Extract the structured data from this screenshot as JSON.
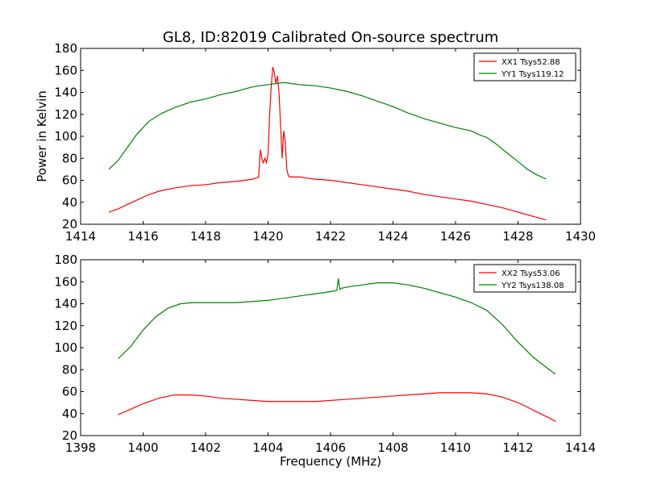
{
  "figure": {
    "title": "GL8, ID:82019 Calibrated On-source spectrum",
    "ylabel": "Power in Kelvin",
    "xlabel": "Frequency (MHz)"
  },
  "chart_data": [
    {
      "type": "line",
      "title": "GL8, ID:82019 Calibrated On-source spectrum",
      "xlabel": "",
      "ylabel": "Power in Kelvin",
      "xlim": [
        1414,
        1430
      ],
      "ylim": [
        20,
        180
      ],
      "xticks": [
        1414,
        1416,
        1418,
        1420,
        1422,
        1424,
        1426,
        1428,
        1430
      ],
      "yticks": [
        20,
        40,
        60,
        80,
        100,
        120,
        140,
        160,
        180
      ],
      "legend": "top-right",
      "grid": false,
      "series": [
        {
          "name": "XX1 Tsys52.88",
          "color": "#ff0000",
          "x": [
            1414.9,
            1415.2,
            1415.5,
            1415.8,
            1416.1,
            1416.5,
            1417.0,
            1417.5,
            1418.0,
            1418.5,
            1419.0,
            1419.5,
            1419.7,
            1419.75,
            1419.8,
            1419.85,
            1419.9,
            1419.95,
            1420.0,
            1420.05,
            1420.1,
            1420.15,
            1420.2,
            1420.25,
            1420.3,
            1420.35,
            1420.4,
            1420.45,
            1420.5,
            1420.55,
            1420.6,
            1420.65,
            1420.7,
            1421.0,
            1421.5,
            1422.0,
            1422.5,
            1423.0,
            1423.5,
            1424.0,
            1424.5,
            1425.0,
            1425.5,
            1426.0,
            1426.5,
            1427.0,
            1427.5,
            1428.0,
            1428.5,
            1428.9
          ],
          "y": [
            31,
            34,
            38,
            42,
            46,
            50,
            53,
            55,
            56,
            58,
            59,
            61,
            63,
            88,
            80,
            76,
            80,
            76,
            84,
            120,
            145,
            163,
            158,
            148,
            155,
            140,
            110,
            80,
            105,
            95,
            70,
            64,
            63,
            63,
            61,
            60,
            58,
            56,
            54,
            52,
            50,
            47,
            45,
            43,
            41,
            38,
            35,
            31,
            27,
            24
          ]
        },
        {
          "name": "YY1 Tsys119.12",
          "color": "#008000",
          "x": [
            1414.9,
            1415.2,
            1415.5,
            1415.8,
            1416.2,
            1416.6,
            1417.0,
            1417.5,
            1418.0,
            1418.5,
            1419.0,
            1419.5,
            1420.0,
            1420.5,
            1421.0,
            1421.5,
            1422.0,
            1422.5,
            1423.0,
            1423.5,
            1424.0,
            1424.5,
            1425.0,
            1425.5,
            1426.0,
            1426.5,
            1426.8,
            1427.0,
            1427.3,
            1427.6,
            1428.0,
            1428.3,
            1428.6,
            1428.9
          ],
          "y": [
            70,
            78,
            90,
            102,
            114,
            121,
            126,
            131,
            134,
            138,
            141,
            145,
            147,
            149,
            147,
            146,
            144,
            141,
            137,
            132,
            127,
            121,
            116,
            112,
            108,
            105,
            101,
            99,
            93,
            86,
            77,
            70,
            65,
            61
          ]
        }
      ]
    },
    {
      "type": "line",
      "title": "",
      "xlabel": "Frequency (MHz)",
      "ylabel": "",
      "xlim": [
        1398,
        1414
      ],
      "ylim": [
        20,
        180
      ],
      "xticks": [
        1398,
        1400,
        1402,
        1404,
        1406,
        1408,
        1410,
        1412,
        1414
      ],
      "yticks": [
        20,
        40,
        60,
        80,
        100,
        120,
        140,
        160,
        180
      ],
      "legend": "top-right",
      "grid": false,
      "series": [
        {
          "name": "XX2 Tsys53.06",
          "color": "#ff0000",
          "x": [
            1399.2,
            1399.6,
            1400.0,
            1400.5,
            1401.0,
            1401.5,
            1402.0,
            1402.5,
            1403.0,
            1403.5,
            1404.0,
            1404.5,
            1405.0,
            1405.5,
            1406.0,
            1406.5,
            1407.0,
            1407.5,
            1408.0,
            1408.5,
            1409.0,
            1409.5,
            1410.0,
            1410.5,
            1411.0,
            1411.5,
            1412.0,
            1412.5,
            1413.0,
            1413.2
          ],
          "y": [
            39,
            44,
            49,
            54,
            57,
            57,
            56,
            54,
            53,
            52,
            51,
            51,
            51,
            51,
            52,
            53,
            54,
            55,
            56,
            57,
            58,
            59,
            59,
            59,
            58,
            55,
            50,
            43,
            36,
            33
          ]
        },
        {
          "name": "YY2 Tsys138.08",
          "color": "#008000",
          "x": [
            1399.2,
            1399.6,
            1400.0,
            1400.4,
            1400.8,
            1401.2,
            1401.6,
            1402.0,
            1402.5,
            1403.0,
            1403.5,
            1404.0,
            1404.5,
            1405.0,
            1405.5,
            1406.0,
            1406.2,
            1406.25,
            1406.3,
            1406.35,
            1406.5,
            1407.0,
            1407.5,
            1408.0,
            1408.5,
            1409.0,
            1409.5,
            1410.0,
            1410.5,
            1411.0,
            1411.5,
            1412.0,
            1412.5,
            1413.0,
            1413.2
          ],
          "y": [
            90,
            101,
            116,
            128,
            136,
            140,
            141,
            141,
            141,
            141,
            142,
            143,
            145,
            147,
            149,
            151,
            152,
            163,
            153,
            154,
            155,
            157,
            159,
            159,
            157,
            154,
            150,
            146,
            141,
            134,
            121,
            105,
            91,
            80,
            76
          ]
        }
      ]
    }
  ]
}
